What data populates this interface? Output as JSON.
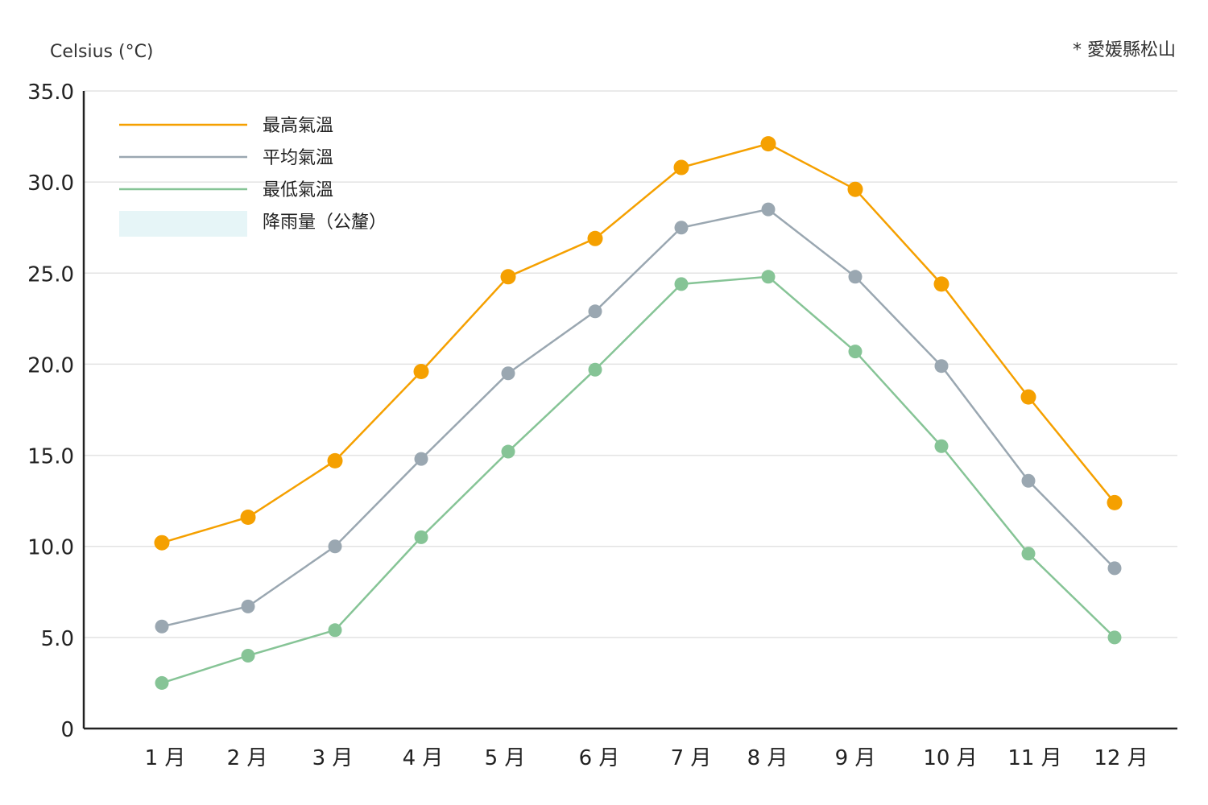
{
  "chart_data": {
    "type": "line",
    "ylabel": "Celsius (°C)",
    "note": "* 愛媛縣松山",
    "categories": [
      "1 月",
      "2 月",
      "3 月",
      "4 月",
      "5 月",
      "6 月",
      "7 月",
      "8 月",
      "9 月",
      "10 月",
      "11 月",
      "12 月"
    ],
    "ylim": [
      0,
      35
    ],
    "yticks": [
      "0",
      "5.0",
      "10.0",
      "15.0",
      "20.0",
      "25.0",
      "30.0",
      "35.0"
    ],
    "ytick_values": [
      0,
      5,
      10,
      15,
      20,
      25,
      30,
      35
    ],
    "grid": true,
    "legend_position": "top-left",
    "series": [
      {
        "name": "最高氣溫",
        "color": "#F5A000",
        "values": [
          10.2,
          11.6,
          14.7,
          19.6,
          24.8,
          26.9,
          30.8,
          32.1,
          29.6,
          24.4,
          18.2,
          12.4
        ]
      },
      {
        "name": "平均氣溫",
        "color": "#9AA7B1",
        "values": [
          5.6,
          6.7,
          10.0,
          14.8,
          19.5,
          22.9,
          27.5,
          28.5,
          24.8,
          19.9,
          13.6,
          8.8
        ]
      },
      {
        "name": "最低氣溫",
        "color": "#86C496",
        "values": [
          2.5,
          4.0,
          5.4,
          10.5,
          15.2,
          19.7,
          24.4,
          24.8,
          20.7,
          15.5,
          9.6,
          5.0
        ]
      }
    ],
    "extra_legend": {
      "name": "降雨量（公釐）",
      "color": "#E6F5F7"
    }
  }
}
